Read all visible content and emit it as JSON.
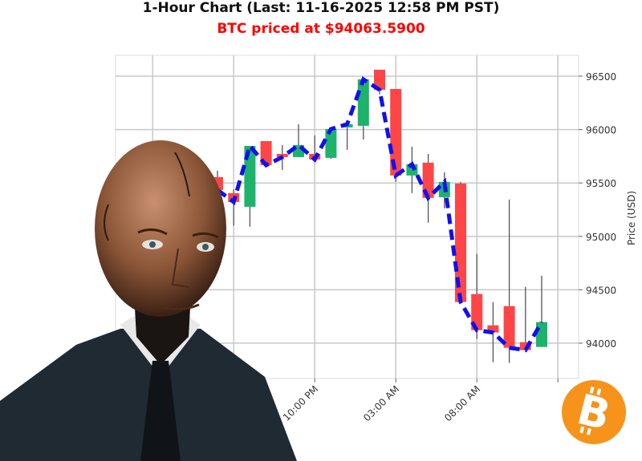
{
  "title": "1-Hour Chart (Last: 11-16-2025 12:58 PM PST)",
  "subtitle": "BTC priced at $94063.5900",
  "colors": {
    "up": "#1db36b",
    "down": "#ff4545",
    "line": "#1010ee",
    "subtitle": "#ff0000",
    "bitcoin": "#f7931a"
  },
  "icons": {
    "logo": "bitcoin-logo",
    "illustration": "android-man-in-suit"
  },
  "chart_data": {
    "type": "candlestick",
    "title": "1-Hour Chart (Last: 11-16-2025 12:58 PM PST)",
    "ylabel": "Price (USD)",
    "ylim": [
      93670,
      96695
    ],
    "yticks": [
      94000,
      94500,
      95000,
      95500,
      96000,
      96500
    ],
    "xtick_labels": [
      {
        "hour": 6,
        "label": "10:00 PM"
      },
      {
        "hour": 11,
        "label": "03:00 AM"
      },
      {
        "hour": 16,
        "label": "08:00 AM"
      }
    ],
    "xgrid_hours": [
      -4,
      1,
      6,
      11,
      16,
      21
    ],
    "grid": true,
    "line_series": "close (blue dashed)",
    "candles": [
      {
        "hour": 0,
        "o": 95555,
        "h": 95615,
        "l": 95430,
        "c": 95435
      },
      {
        "hour": 1,
        "o": 95405,
        "h": 95440,
        "l": 95100,
        "c": 95322
      },
      {
        "hour": 2,
        "o": 95277,
        "h": 95847,
        "l": 95090,
        "c": 95847
      },
      {
        "hour": 3,
        "o": 95892,
        "h": 95892,
        "l": 95667,
        "c": 95667
      },
      {
        "hour": 4,
        "o": 95772,
        "h": 95855,
        "l": 95622,
        "c": 95742
      },
      {
        "hour": 5,
        "o": 95742,
        "h": 96050,
        "l": 95742,
        "c": 95855
      },
      {
        "hour": 6,
        "o": 95772,
        "h": 95945,
        "l": 95720,
        "c": 95720
      },
      {
        "hour": 7,
        "o": 95735,
        "h": 96005,
        "l": 95725,
        "c": 96005
      },
      {
        "hour": 8,
        "o": 96020,
        "h": 96050,
        "l": 95810,
        "c": 96050
      },
      {
        "hour": 9,
        "o": 96035,
        "h": 96470,
        "l": 95907,
        "c": 96470
      },
      {
        "hour": 10,
        "o": 96560,
        "h": 96560,
        "l": 96330,
        "c": 96372
      },
      {
        "hour": 11,
        "o": 96380,
        "h": 96380,
        "l": 95510,
        "c": 95570
      },
      {
        "hour": 12,
        "o": 95570,
        "h": 95840,
        "l": 95405,
        "c": 95675
      },
      {
        "hour": 13,
        "o": 95690,
        "h": 95772,
        "l": 95127,
        "c": 95360
      },
      {
        "hour": 14,
        "o": 95367,
        "h": 95600,
        "l": 95262,
        "c": 95510
      },
      {
        "hour": 15,
        "o": 95495,
        "h": 95510,
        "l": 94385,
        "c": 94385
      },
      {
        "hour": 16,
        "o": 94460,
        "h": 94835,
        "l": 94040,
        "c": 94122
      },
      {
        "hour": 17,
        "o": 94167,
        "h": 94385,
        "l": 93822,
        "c": 94100
      },
      {
        "hour": 18,
        "o": 94347,
        "h": 95345,
        "l": 93815,
        "c": 93957
      },
      {
        "hour": 19,
        "o": 94010,
        "h": 94527,
        "l": 93935,
        "c": 93935
      },
      {
        "hour": 20,
        "o": 93965,
        "h": 94632,
        "l": 93965,
        "c": 94197
      }
    ]
  }
}
